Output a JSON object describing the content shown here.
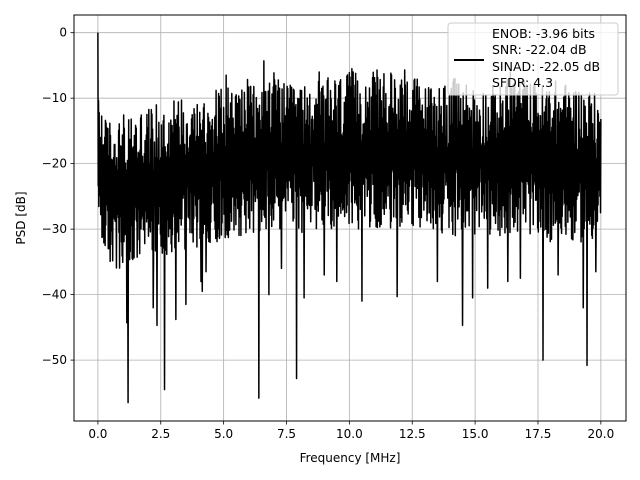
{
  "chart_data": {
    "type": "line",
    "title": "",
    "xlabel": "Frequency [MHz]",
    "ylabel": "PSD [dB]",
    "xlim": [
      -0.95,
      21.0
    ],
    "ylim": [
      -59.3,
      2.7
    ],
    "xticks": [
      0.0,
      2.5,
      5.0,
      7.5,
      10.0,
      12.5,
      15.0,
      17.5,
      20.0
    ],
    "xtick_labels": [
      "0.0",
      "2.5",
      "5.0",
      "7.5",
      "10.0",
      "12.5",
      "15.0",
      "17.5",
      "20.0"
    ],
    "yticks": [
      0,
      -10,
      -20,
      -30,
      -40,
      -50
    ],
    "ytick_labels": [
      "0",
      "−10",
      "−20",
      "−30",
      "−40",
      "−50"
    ],
    "grid": true,
    "legend_position": "top-right",
    "line_color": "#000000",
    "series": [
      {
        "name": "ENOB: -3.96 bits\nSNR: -22.04 dB\nSINAD: -22.05 dB\nSFDR: 4.3",
        "legend_lines": [
          "ENOB: -3.96 bits",
          "SNR: -22.04 dB",
          "SINAD: -22.05 dB",
          "SFDR: 4.3"
        ],
        "x_range": [
          0.0,
          20.0
        ],
        "envelope_points": {
          "x": [
            0.0,
            0.02,
            0.05,
            0.1,
            0.3,
            0.5,
            0.8,
            1.2,
            1.5,
            2.0,
            2.3,
            2.6,
            3.0,
            3.5,
            4.0,
            4.5,
            5.0,
            5.5,
            6.0,
            6.4,
            6.8,
            7.5,
            7.9,
            8.2,
            9.0,
            10.0,
            11.0,
            11.9,
            12.5,
            13.0,
            14.0,
            14.5,
            15.0,
            16.0,
            16.5,
            17.0,
            17.7,
            18.0,
            19.0,
            19.4,
            20.0
          ],
          "upper": [
            0.0,
            -5,
            -8,
            -10,
            -13,
            -13,
            -13,
            -12,
            -12,
            -11,
            -11,
            -11,
            -10,
            -9,
            -10,
            -9,
            -8,
            -8,
            -7,
            -9,
            -5,
            -8,
            -8,
            -8,
            -7,
            -6,
            -6,
            -6,
            -6,
            -8,
            -7,
            -7,
            -8,
            -8,
            -6,
            -7,
            -8,
            -7,
            -8,
            -8,
            -10
          ],
          "lower": [
            -28,
            -30,
            -31,
            -32,
            -34,
            -36,
            -37,
            -38,
            -36,
            -35,
            -35,
            -34,
            -34,
            -33,
            -33,
            -32,
            -32,
            -31,
            -31,
            -31,
            -31,
            -30,
            -30,
            -31,
            -30,
            -30,
            -30,
            -30,
            -30,
            -30,
            -31,
            -31,
            -31,
            -31,
            -31,
            -31,
            -31,
            -32,
            -32,
            -32,
            -32
          ]
        },
        "deep_nulls": [
          {
            "x": 1.2,
            "y": -56.5
          },
          {
            "x": 1.15,
            "y": -44.3
          },
          {
            "x": 2.2,
            "y": -42
          },
          {
            "x": 2.35,
            "y": -44.7
          },
          {
            "x": 2.65,
            "y": -54.5
          },
          {
            "x": 3.1,
            "y": -43.8
          },
          {
            "x": 3.5,
            "y": -41.5
          },
          {
            "x": 4.1,
            "y": -38
          },
          {
            "x": 4.15,
            "y": -39.5
          },
          {
            "x": 4.3,
            "y": -36.5
          },
          {
            "x": 6.4,
            "y": -55.8
          },
          {
            "x": 6.8,
            "y": -40
          },
          {
            "x": 7.3,
            "y": -36
          },
          {
            "x": 7.9,
            "y": -52.8
          },
          {
            "x": 8.2,
            "y": -40.5
          },
          {
            "x": 9.0,
            "y": -37
          },
          {
            "x": 9.5,
            "y": -38
          },
          {
            "x": 10.5,
            "y": -41
          },
          {
            "x": 11.9,
            "y": -40.3
          },
          {
            "x": 13.5,
            "y": -38
          },
          {
            "x": 14.5,
            "y": -44.7
          },
          {
            "x": 14.9,
            "y": -40.5
          },
          {
            "x": 15.5,
            "y": -39
          },
          {
            "x": 16.3,
            "y": -38
          },
          {
            "x": 16.8,
            "y": -37.5
          },
          {
            "x": 17.7,
            "y": -50
          },
          {
            "x": 18.3,
            "y": -37
          },
          {
            "x": 19.3,
            "y": -42
          },
          {
            "x": 19.45,
            "y": -50.8
          },
          {
            "x": 19.8,
            "y": -36.5
          }
        ],
        "peaks": [
          {
            "x": 0.0,
            "y": 0.0
          },
          {
            "x": 6.6,
            "y": -4.3
          },
          {
            "x": 5.1,
            "y": -6.5
          },
          {
            "x": 10.1,
            "y": -5.5
          },
          {
            "x": 11.1,
            "y": -5.7
          },
          {
            "x": 12.2,
            "y": -5.7
          },
          {
            "x": 8.8,
            "y": -6
          },
          {
            "x": 16.4,
            "y": -6
          }
        ]
      }
    ]
  }
}
